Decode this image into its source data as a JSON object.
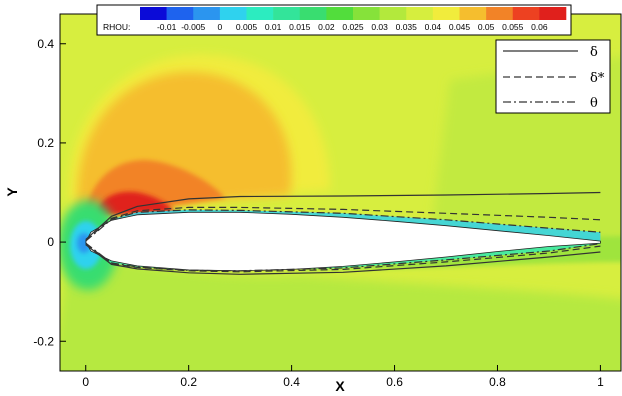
{
  "chart_data": {
    "type": "contour",
    "xlabel": "X",
    "ylabel": "Y",
    "xlim": [
      -0.05,
      1.04
    ],
    "ylim": [
      -0.26,
      0.46
    ],
    "xticks": [
      0,
      0.2,
      0.4,
      0.6,
      0.8,
      1
    ],
    "yticks": [
      -0.2,
      0,
      0.2,
      0.4
    ],
    "colorbar": {
      "variable": "RHOU:",
      "levels": [
        "-0.01",
        "-0.005",
        "0",
        "0.005",
        "0.01",
        "0.015",
        "0.02",
        "0.025",
        "0.03",
        "0.035",
        "0.04",
        "0.045",
        "0.05",
        "0.055",
        "0.06"
      ],
      "colors": [
        "#0b0bd8",
        "#1e63ee",
        "#2b95ef",
        "#2fd2ee",
        "#2cecc0",
        "#33e49a",
        "#39dd70",
        "#52dd3c",
        "#86e23a",
        "#b3e93c",
        "#d6ee3e",
        "#f1ec3c",
        "#f5be2e",
        "#f28327",
        "#ed4121",
        "#e0201c"
      ]
    },
    "legend": {
      "position": "top-right",
      "entries": [
        {
          "label": "δ",
          "style": "solid"
        },
        {
          "label": "δ*",
          "style": "dashed"
        },
        {
          "label": "θ",
          "style": "dash-dot"
        }
      ]
    },
    "field_regions": [
      {
        "region": "freestream",
        "value": 0.045
      },
      {
        "region": "upper-left high-speed lobe",
        "value": 0.05
      },
      {
        "region": "leading-edge suction peak",
        "value": 0.06
      },
      {
        "region": "stagnation point",
        "value": -0.01
      },
      {
        "region": "lower surface",
        "value": 0.03
      },
      {
        "region": "trailing-edge wake",
        "value": 0.03
      }
    ],
    "series": [
      {
        "name": "δ",
        "upper": {
          "x": [
            0,
            0.05,
            0.1,
            0.2,
            0.3,
            0.5,
            0.7,
            0.9,
            1.0
          ],
          "y": [
            0.005,
            0.052,
            0.072,
            0.087,
            0.092,
            0.093,
            0.095,
            0.098,
            0.1
          ]
        },
        "lower": {
          "x": [
            0,
            0.05,
            0.1,
            0.2,
            0.3,
            0.5,
            0.7,
            0.9,
            1.0
          ],
          "y": [
            -0.005,
            -0.045,
            -0.054,
            -0.062,
            -0.065,
            -0.061,
            -0.048,
            -0.03,
            -0.02
          ]
        }
      },
      {
        "name": "δ*",
        "upper": {
          "x": [
            0,
            0.05,
            0.1,
            0.2,
            0.3,
            0.5,
            0.7,
            0.9,
            1.0
          ],
          "y": [
            0.003,
            0.048,
            0.063,
            0.07,
            0.07,
            0.066,
            0.058,
            0.05,
            0.045
          ]
        },
        "lower": {
          "x": [
            0,
            0.05,
            0.1,
            0.2,
            0.3,
            0.5,
            0.7,
            0.9,
            1.0
          ],
          "y": [
            -0.003,
            -0.043,
            -0.051,
            -0.058,
            -0.06,
            -0.055,
            -0.04,
            -0.022,
            -0.008
          ]
        }
      },
      {
        "name": "θ",
        "upper": {
          "x": [
            0,
            0.05,
            0.1,
            0.2,
            0.3,
            0.5,
            0.7,
            0.9,
            1.0
          ],
          "y": [
            0.002,
            0.046,
            0.06,
            0.065,
            0.064,
            0.058,
            0.045,
            0.028,
            0.02
          ]
        },
        "lower": {
          "x": [
            0,
            0.05,
            0.1,
            0.2,
            0.3,
            0.5,
            0.7,
            0.9,
            1.0
          ],
          "y": [
            -0.002,
            -0.042,
            -0.05,
            -0.057,
            -0.058,
            -0.052,
            -0.036,
            -0.018,
            -0.003
          ]
        }
      }
    ],
    "airfoil": {
      "upper": {
        "x": [
          0,
          0.01,
          0.05,
          0.1,
          0.2,
          0.3,
          0.4,
          0.5,
          0.6,
          0.7,
          0.8,
          0.9,
          1.0
        ],
        "y": [
          0,
          0.02,
          0.044,
          0.055,
          0.06,
          0.06,
          0.056,
          0.05,
          0.042,
          0.033,
          0.023,
          0.013,
          0.002
        ]
      },
      "lower": {
        "x": [
          0,
          0.01,
          0.05,
          0.1,
          0.2,
          0.3,
          0.4,
          0.5,
          0.6,
          0.7,
          0.8,
          0.9,
          1.0
        ],
        "y": [
          0,
          -0.018,
          -0.038,
          -0.048,
          -0.056,
          -0.058,
          -0.055,
          -0.049,
          -0.04,
          -0.03,
          -0.019,
          -0.009,
          -0.002
        ]
      }
    }
  }
}
